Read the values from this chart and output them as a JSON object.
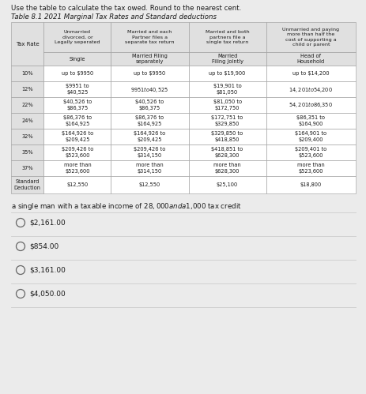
{
  "title_line1": "Use the table to calculate the tax owed. Round to the nearest cent.",
  "title_line2": "Table 8.1 2021 Marginal Tax Rates and Standard deductions",
  "top_headers": [
    "Unmarried\ndivorced, or\nLegally seperated",
    "Married and each\nPartner files a\nseparate tax return",
    "Married and both\npartners file a\nsingle tax return",
    "Unmarried and paying\nmore than half the\ncost of supporting a\nchild or parent"
  ],
  "sub_headers": [
    "Single",
    "Married Filing\nseparately",
    "Married\nFiling Jointly",
    "Head of\nHousehold"
  ],
  "rows": [
    [
      "10%",
      "up to $9950",
      "up to $9950",
      "up to $19,900",
      "up to $14,200"
    ],
    [
      "12%",
      "$9951 to\n$40,525",
      "$9951 to $40,525",
      "$19,901 to\n$81,050",
      "$14,201 to $54,200"
    ],
    [
      "22%",
      "$40,526 to\n$86,375",
      "$40,526 to\n$86,375",
      "$81,050 to\n$172,750",
      "$54,201 to $86,350"
    ],
    [
      "24%",
      "$86,376 to\n$164,925",
      "$86,376 to\n$164,925",
      "$172,751 to\n$329,850",
      "$86,351 to\n$164,900"
    ],
    [
      "32%",
      "$164,926 to\n$209,425",
      "$164,926 to\n$209,425",
      "$329,850 to\n$418,850",
      "$164,901 to\n$209,400"
    ],
    [
      "35%",
      "$209,426 to\n$523,600",
      "$209,426 to\n$314,150",
      "$418,851 to\n$628,300",
      "$209,401 to\n$523,600"
    ],
    [
      "37%",
      "more than\n$523,600",
      "more than\n$314,150",
      "more than\n$628,300",
      "more than\n$523,600"
    ],
    [
      "Standard\nDeduction",
      "$12,550",
      "$12,550",
      "$25,100",
      "$18,800"
    ]
  ],
  "question": "a single man with a taxable income of $28,000 and a $1,000 tax credit",
  "options": [
    "$2,161.00",
    "$854.00",
    "$3,161.00",
    "$4,050.00"
  ],
  "bg_color": "#ebebeb",
  "table_bg": "#ffffff",
  "header_bg": "#e0e0e0",
  "border_color": "#999999",
  "text_color": "#1a1a1a",
  "radio_color": "#666666",
  "line_color": "#cccccc"
}
